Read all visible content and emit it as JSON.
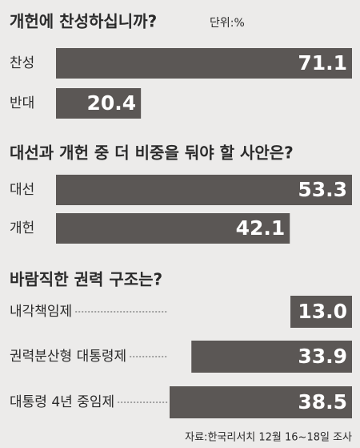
{
  "chart_data": [
    {
      "type": "bar",
      "title": "개헌에 찬성하십니까?",
      "subtitle": "단위:%",
      "color": "#5b5755",
      "categories": [
        "찬성",
        "반대"
      ],
      "values": [
        71.1,
        20.4
      ]
    },
    {
      "type": "bar",
      "title": "대선과 개헌 중 더 비중을 둬야 할 사안은?",
      "color": "#5b5755",
      "categories": [
        "대선",
        "개헌"
      ],
      "values": [
        53.3,
        42.1
      ]
    },
    {
      "type": "bar",
      "title": "바람직한 권력 구조는?",
      "color": "#5b5755",
      "categories": [
        "내각책임제",
        "권력분산형 대통령제",
        "대통령 4년 중임제"
      ],
      "values": [
        13.0,
        33.9,
        38.5
      ],
      "value_labels": [
        "13.0",
        "33.9",
        "38.5"
      ]
    }
  ],
  "source": "자료:한국리서치 12월 16~18일 조사"
}
